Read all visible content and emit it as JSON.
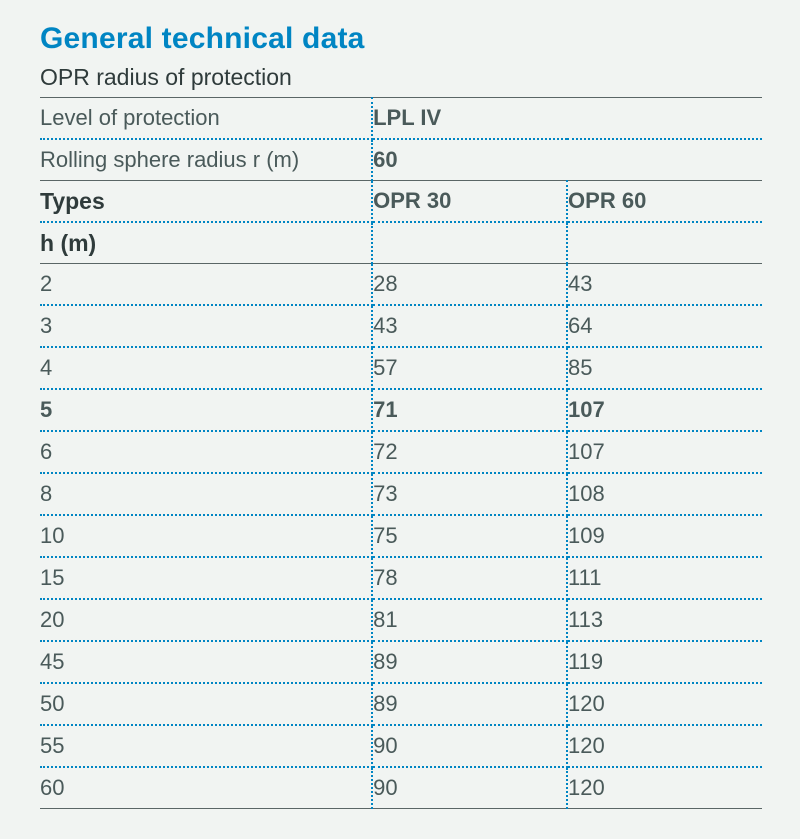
{
  "title": "General technical data",
  "subtitle": "OPR radius of protection",
  "table": {
    "background_color": "#f1f4f2",
    "accent_color": "#0085c3",
    "text_color": "#4a5a5a",
    "border_style": "dotted",
    "solid_border_color": "#5a6666",
    "font_family": "Arial",
    "column_widths_pct": [
      46,
      27,
      27
    ],
    "header_rows": [
      {
        "label": "Level of protection",
        "value": "LPL IV",
        "span": 2
      },
      {
        "label": "Rolling sphere radius r (m)",
        "value": "60",
        "span": 2
      }
    ],
    "types_row": {
      "label": "Types",
      "col1": "OPR 30",
      "col2": "OPR 60"
    },
    "h_label": "h (m)",
    "bold_row_index": 3,
    "rows": [
      {
        "h": "2",
        "opr30": "28",
        "opr60": "43"
      },
      {
        "h": "3",
        "opr30": "43",
        "opr60": "64"
      },
      {
        "h": "4",
        "opr30": "57",
        "opr60": "85"
      },
      {
        "h": "5",
        "opr30": "71",
        "opr60": "107"
      },
      {
        "h": "6",
        "opr30": "72",
        "opr60": "107"
      },
      {
        "h": "8",
        "opr30": "73",
        "opr60": "108"
      },
      {
        "h": "10",
        "opr30": "75",
        "opr60": "109"
      },
      {
        "h": "15",
        "opr30": "78",
        "opr60": "111"
      },
      {
        "h": "20",
        "opr30": "81",
        "opr60": "113"
      },
      {
        "h": "45",
        "opr30": "89",
        "opr60": "119"
      },
      {
        "h": "50",
        "opr30": "89",
        "opr60": "120"
      },
      {
        "h": "55",
        "opr30": "90",
        "opr60": "120"
      },
      {
        "h": "60",
        "opr30": "90",
        "opr60": "120"
      }
    ]
  }
}
